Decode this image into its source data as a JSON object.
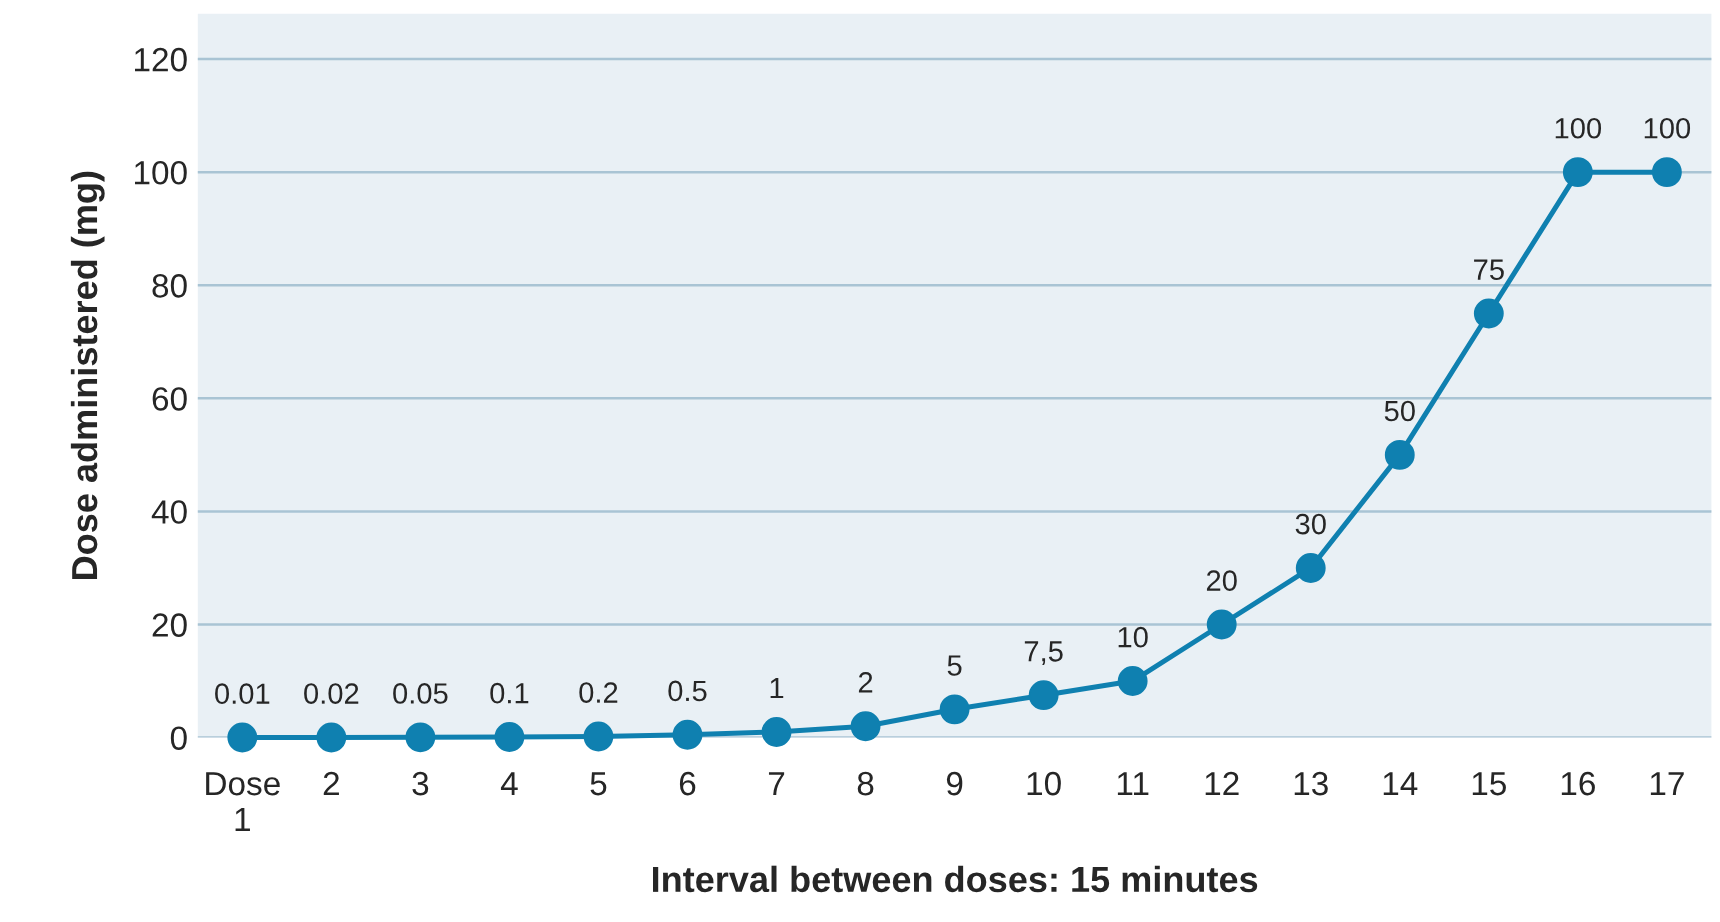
{
  "chart_data": {
    "type": "line",
    "xlabel": "Interval between doses: 15 minutes",
    "ylabel": "Dose administered (mg)",
    "categories": [
      "Dose\n1",
      "2",
      "3",
      "4",
      "5",
      "6",
      "7",
      "8",
      "9",
      "10",
      "11",
      "12",
      "13",
      "14",
      "15",
      "16",
      "17"
    ],
    "series": [
      {
        "color": "#0f80b0",
        "values": [
          0.01,
          0.02,
          0.05,
          0.1,
          0.2,
          0.5,
          1,
          2,
          5,
          7.5,
          10,
          20,
          30,
          50,
          75,
          100,
          100
        ],
        "value_labels": [
          "0.01",
          "0.02",
          "0.05",
          "0.1",
          "0.2",
          "0.5",
          "1",
          "2",
          "5",
          "7,5",
          "10",
          "20",
          "30",
          "50",
          "75",
          "100",
          "100"
        ]
      }
    ],
    "ylim": [
      0,
      128
    ],
    "yticks": [
      0,
      20,
      40,
      60,
      80,
      100,
      120
    ],
    "grid": "y",
    "marker": "circle",
    "line_style": "solid",
    "legend": false
  }
}
